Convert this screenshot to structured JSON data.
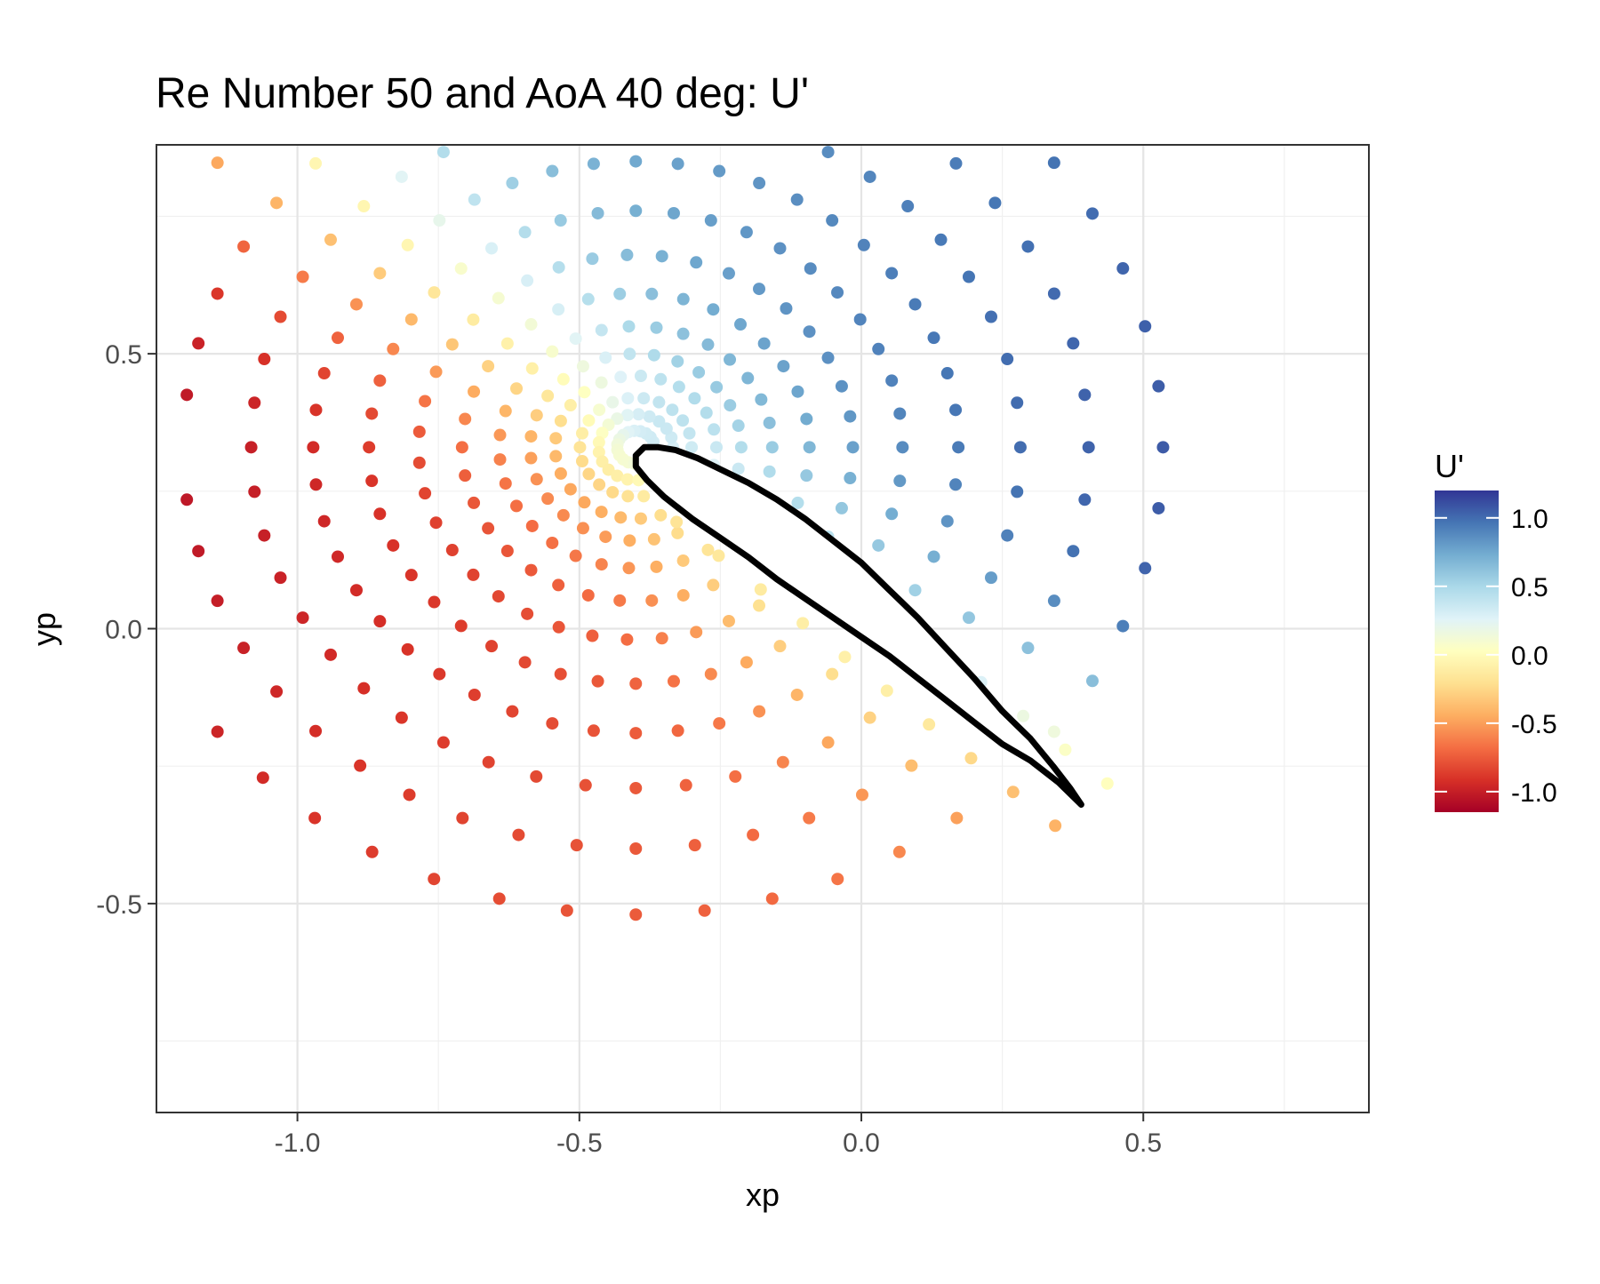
{
  "chart_data": {
    "type": "scatter",
    "title": "Re Number 50 and AoA 40 deg: U'",
    "xlabel": "xp",
    "ylabel": "yp",
    "xlim": [
      -1.25,
      0.9
    ],
    "ylim": [
      -0.88,
      0.88
    ],
    "x_ticks": [
      -1.0,
      -0.5,
      0.0,
      0.5
    ],
    "x_tick_labels": [
      "-1.0",
      "-0.5",
      "0.0",
      "0.5"
    ],
    "y_ticks": [
      -0.5,
      0.0,
      0.5
    ],
    "y_tick_labels": [
      "-0.5",
      "0.0",
      "0.5"
    ],
    "grid": true,
    "legend": {
      "title": "U'",
      "position": "right",
      "type": "colorbar",
      "range": [
        -1.15,
        1.2
      ],
      "ticks": [
        1.0,
        0.5,
        0.0,
        -0.5,
        -1.0
      ],
      "tick_labels": [
        "1.0",
        "0.5",
        "0.0",
        "-0.5",
        "-1.0"
      ],
      "palette": [
        "#a50026",
        "#d73027",
        "#f46d43",
        "#fdae61",
        "#fee090",
        "#ffffbf",
        "#e0f3f8",
        "#abd9e9",
        "#74add1",
        "#4575b4",
        "#313695"
      ]
    },
    "sample_grid": {
      "description": "O-grid sample points around the airfoil (airfoil rotated 40 deg)",
      "center": [
        -0.4,
        0.33
      ],
      "rings": [
        0.03,
        0.06,
        0.09,
        0.13,
        0.17,
        0.22,
        0.28,
        0.35,
        0.43,
        0.52,
        0.62,
        0.73,
        0.85
      ],
      "angular_count": 48,
      "trailing_edge": [
        0.39,
        -0.32
      ],
      "visible_x_range": [
        -1.2,
        0.84
      ],
      "visible_y_range": [
        -0.86,
        0.87
      ]
    },
    "airfoil": {
      "chord_start": [
        -0.4,
        0.33
      ],
      "chord_end": [
        0.39,
        -0.32
      ],
      "angle_of_attack_deg": 40,
      "thickness_ratio": 0.12,
      "upper": [
        [
          -0.385,
          0.33
        ],
        [
          -0.36,
          0.33
        ],
        [
          -0.33,
          0.325
        ],
        [
          -0.29,
          0.31
        ],
        [
          -0.25,
          0.29
        ],
        [
          -0.2,
          0.265
        ],
        [
          -0.15,
          0.235
        ],
        [
          -0.1,
          0.2
        ],
        [
          -0.05,
          0.16
        ],
        [
          0.0,
          0.12
        ],
        [
          0.05,
          0.07
        ],
        [
          0.1,
          0.02
        ],
        [
          0.15,
          -0.035
        ],
        [
          0.2,
          -0.09
        ],
        [
          0.25,
          -0.15
        ],
        [
          0.3,
          -0.2
        ],
        [
          0.34,
          -0.25
        ],
        [
          0.37,
          -0.29
        ],
        [
          0.39,
          -0.32
        ]
      ],
      "lower": [
        [
          -0.385,
          0.33
        ],
        [
          -0.4,
          0.315
        ],
        [
          -0.4,
          0.295
        ],
        [
          -0.38,
          0.27
        ],
        [
          -0.35,
          0.24
        ],
        [
          -0.3,
          0.2
        ],
        [
          -0.25,
          0.165
        ],
        [
          -0.2,
          0.13
        ],
        [
          -0.15,
          0.09
        ],
        [
          -0.1,
          0.055
        ],
        [
          -0.05,
          0.02
        ],
        [
          0.0,
          -0.015
        ],
        [
          0.05,
          -0.05
        ],
        [
          0.1,
          -0.09
        ],
        [
          0.15,
          -0.13
        ],
        [
          0.2,
          -0.17
        ],
        [
          0.25,
          -0.21
        ],
        [
          0.3,
          -0.24
        ],
        [
          0.35,
          -0.28
        ],
        [
          0.39,
          -0.32
        ]
      ]
    }
  }
}
